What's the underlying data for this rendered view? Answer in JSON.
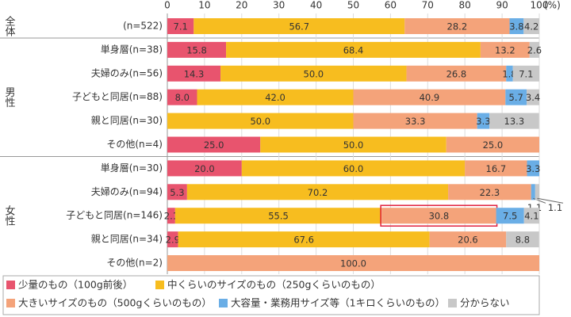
{
  "chart_data": {
    "type": "stacked-bar-horizontal",
    "x_unit": "(%)",
    "xlim": [
      0,
      100
    ],
    "xticks": [
      0,
      10,
      20,
      30,
      40,
      50,
      60,
      70,
      80,
      90,
      100
    ],
    "grid": true,
    "groups": [
      {
        "name": "全体",
        "categories": [
          "(n=522)"
        ]
      },
      {
        "name": "男性",
        "categories": [
          "単身層(n=38)",
          "夫婦のみ(n=56)",
          "子どもと同居(n=88)",
          "親と同居(n=30)",
          "その他(n=4)"
        ]
      },
      {
        "name": "女性",
        "categories": [
          "単身層(n=30)",
          "夫婦のみ(n=94)",
          "子どもと同居(n=146)",
          "親と同居(n=34)",
          "その他(n=2)"
        ]
      }
    ],
    "series": [
      {
        "name": "少量のもの（100g前後）",
        "color": "#e8546e",
        "values": [
          7.1,
          15.8,
          14.3,
          8.0,
          null,
          25.0,
          20.0,
          5.3,
          2.1,
          2.9,
          null
        ],
        "value_labels": [
          "7.1",
          "15.8",
          "14.3",
          "8.0",
          null,
          "25.0",
          "20.0",
          "5.3",
          "2.1",
          "2.9",
          null
        ]
      },
      {
        "name": "中くらいのサイズのもの（250gくらいのもの）",
        "color": "#f7bd1f",
        "values": [
          56.7,
          68.4,
          50.0,
          42.0,
          50.0,
          50.0,
          60.0,
          70.2,
          55.5,
          67.6,
          null
        ],
        "value_labels": [
          "56.7",
          "68.4",
          "50.0",
          "42.0",
          "50.0",
          "50.0",
          "60.0",
          "70.2",
          "55.5",
          "67.6",
          null
        ]
      },
      {
        "name": "大きいサイズのもの（500gくらいのもの）",
        "color": "#f4a37a",
        "values": [
          28.2,
          13.2,
          26.8,
          40.9,
          33.3,
          25.0,
          16.7,
          22.3,
          30.8,
          20.6,
          100.0
        ],
        "value_labels": [
          "28.2",
          "13.2",
          "26.8",
          "40.9",
          "33.3",
          "25.0",
          "16.7",
          "22.3",
          "30.8",
          "20.6",
          "100.0"
        ]
      },
      {
        "name": "大容量・業務用サイズ等（1キロくらいのもの）",
        "color": "#6aaee6",
        "values": [
          3.8,
          null,
          1.8,
          5.7,
          3.3,
          null,
          3.3,
          1.1,
          7.5,
          null,
          null
        ],
        "value_labels": [
          "3.8",
          null,
          "1.8",
          "5.7",
          "3.3",
          null,
          "3.3",
          "1.1",
          "7.5",
          null,
          null
        ]
      },
      {
        "name": "分からない",
        "color": "#c8c8c8",
        "values": [
          4.2,
          2.6,
          7.1,
          3.4,
          13.3,
          null,
          null,
          1.1,
          4.1,
          8.8,
          null
        ],
        "value_labels": [
          "4.2",
          "2.6",
          "7.1",
          "3.4",
          "13.3",
          null,
          null,
          "1.1",
          "4.1",
          "8.8",
          null
        ]
      }
    ]
  }
}
